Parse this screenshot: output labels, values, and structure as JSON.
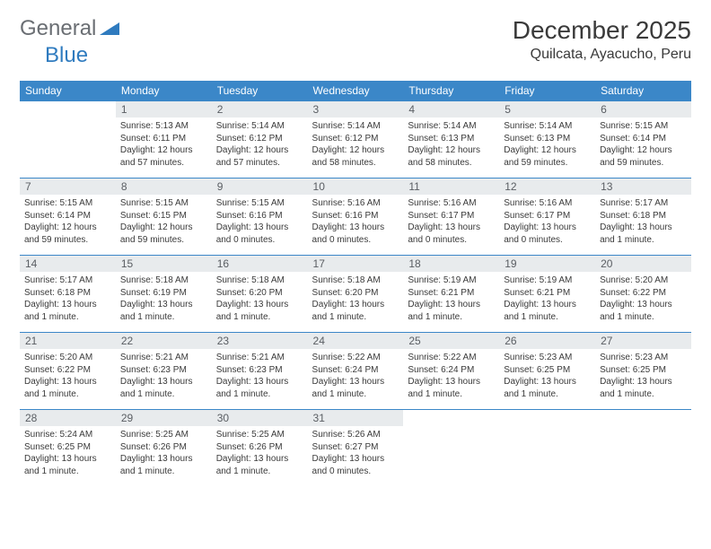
{
  "brand": {
    "part1": "General",
    "part2": "Blue"
  },
  "header": {
    "month_title": "December 2025",
    "location": "Quilcata, Ayacucho, Peru"
  },
  "colors": {
    "header_bg": "#3b87c8",
    "header_text": "#ffffff",
    "daynum_bg": "#e8ebed",
    "rule": "#3b87c8",
    "logo_accent": "#2f7bbf"
  },
  "weekdays": [
    "Sunday",
    "Monday",
    "Tuesday",
    "Wednesday",
    "Thursday",
    "Friday",
    "Saturday"
  ],
  "weeks": [
    [
      {
        "n": "",
        "sr": "",
        "ss": "",
        "dl": ""
      },
      {
        "n": "1",
        "sr": "Sunrise: 5:13 AM",
        "ss": "Sunset: 6:11 PM",
        "dl": "Daylight: 12 hours and 57 minutes."
      },
      {
        "n": "2",
        "sr": "Sunrise: 5:14 AM",
        "ss": "Sunset: 6:12 PM",
        "dl": "Daylight: 12 hours and 57 minutes."
      },
      {
        "n": "3",
        "sr": "Sunrise: 5:14 AM",
        "ss": "Sunset: 6:12 PM",
        "dl": "Daylight: 12 hours and 58 minutes."
      },
      {
        "n": "4",
        "sr": "Sunrise: 5:14 AM",
        "ss": "Sunset: 6:13 PM",
        "dl": "Daylight: 12 hours and 58 minutes."
      },
      {
        "n": "5",
        "sr": "Sunrise: 5:14 AM",
        "ss": "Sunset: 6:13 PM",
        "dl": "Daylight: 12 hours and 59 minutes."
      },
      {
        "n": "6",
        "sr": "Sunrise: 5:15 AM",
        "ss": "Sunset: 6:14 PM",
        "dl": "Daylight: 12 hours and 59 minutes."
      }
    ],
    [
      {
        "n": "7",
        "sr": "Sunrise: 5:15 AM",
        "ss": "Sunset: 6:14 PM",
        "dl": "Daylight: 12 hours and 59 minutes."
      },
      {
        "n": "8",
        "sr": "Sunrise: 5:15 AM",
        "ss": "Sunset: 6:15 PM",
        "dl": "Daylight: 12 hours and 59 minutes."
      },
      {
        "n": "9",
        "sr": "Sunrise: 5:15 AM",
        "ss": "Sunset: 6:16 PM",
        "dl": "Daylight: 13 hours and 0 minutes."
      },
      {
        "n": "10",
        "sr": "Sunrise: 5:16 AM",
        "ss": "Sunset: 6:16 PM",
        "dl": "Daylight: 13 hours and 0 minutes."
      },
      {
        "n": "11",
        "sr": "Sunrise: 5:16 AM",
        "ss": "Sunset: 6:17 PM",
        "dl": "Daylight: 13 hours and 0 minutes."
      },
      {
        "n": "12",
        "sr": "Sunrise: 5:16 AM",
        "ss": "Sunset: 6:17 PM",
        "dl": "Daylight: 13 hours and 0 minutes."
      },
      {
        "n": "13",
        "sr": "Sunrise: 5:17 AM",
        "ss": "Sunset: 6:18 PM",
        "dl": "Daylight: 13 hours and 1 minute."
      }
    ],
    [
      {
        "n": "14",
        "sr": "Sunrise: 5:17 AM",
        "ss": "Sunset: 6:18 PM",
        "dl": "Daylight: 13 hours and 1 minute."
      },
      {
        "n": "15",
        "sr": "Sunrise: 5:18 AM",
        "ss": "Sunset: 6:19 PM",
        "dl": "Daylight: 13 hours and 1 minute."
      },
      {
        "n": "16",
        "sr": "Sunrise: 5:18 AM",
        "ss": "Sunset: 6:20 PM",
        "dl": "Daylight: 13 hours and 1 minute."
      },
      {
        "n": "17",
        "sr": "Sunrise: 5:18 AM",
        "ss": "Sunset: 6:20 PM",
        "dl": "Daylight: 13 hours and 1 minute."
      },
      {
        "n": "18",
        "sr": "Sunrise: 5:19 AM",
        "ss": "Sunset: 6:21 PM",
        "dl": "Daylight: 13 hours and 1 minute."
      },
      {
        "n": "19",
        "sr": "Sunrise: 5:19 AM",
        "ss": "Sunset: 6:21 PM",
        "dl": "Daylight: 13 hours and 1 minute."
      },
      {
        "n": "20",
        "sr": "Sunrise: 5:20 AM",
        "ss": "Sunset: 6:22 PM",
        "dl": "Daylight: 13 hours and 1 minute."
      }
    ],
    [
      {
        "n": "21",
        "sr": "Sunrise: 5:20 AM",
        "ss": "Sunset: 6:22 PM",
        "dl": "Daylight: 13 hours and 1 minute."
      },
      {
        "n": "22",
        "sr": "Sunrise: 5:21 AM",
        "ss": "Sunset: 6:23 PM",
        "dl": "Daylight: 13 hours and 1 minute."
      },
      {
        "n": "23",
        "sr": "Sunrise: 5:21 AM",
        "ss": "Sunset: 6:23 PM",
        "dl": "Daylight: 13 hours and 1 minute."
      },
      {
        "n": "24",
        "sr": "Sunrise: 5:22 AM",
        "ss": "Sunset: 6:24 PM",
        "dl": "Daylight: 13 hours and 1 minute."
      },
      {
        "n": "25",
        "sr": "Sunrise: 5:22 AM",
        "ss": "Sunset: 6:24 PM",
        "dl": "Daylight: 13 hours and 1 minute."
      },
      {
        "n": "26",
        "sr": "Sunrise: 5:23 AM",
        "ss": "Sunset: 6:25 PM",
        "dl": "Daylight: 13 hours and 1 minute."
      },
      {
        "n": "27",
        "sr": "Sunrise: 5:23 AM",
        "ss": "Sunset: 6:25 PM",
        "dl": "Daylight: 13 hours and 1 minute."
      }
    ],
    [
      {
        "n": "28",
        "sr": "Sunrise: 5:24 AM",
        "ss": "Sunset: 6:25 PM",
        "dl": "Daylight: 13 hours and 1 minute."
      },
      {
        "n": "29",
        "sr": "Sunrise: 5:25 AM",
        "ss": "Sunset: 6:26 PM",
        "dl": "Daylight: 13 hours and 1 minute."
      },
      {
        "n": "30",
        "sr": "Sunrise: 5:25 AM",
        "ss": "Sunset: 6:26 PM",
        "dl": "Daylight: 13 hours and 1 minute."
      },
      {
        "n": "31",
        "sr": "Sunrise: 5:26 AM",
        "ss": "Sunset: 6:27 PM",
        "dl": "Daylight: 13 hours and 0 minutes."
      },
      {
        "n": "",
        "sr": "",
        "ss": "",
        "dl": ""
      },
      {
        "n": "",
        "sr": "",
        "ss": "",
        "dl": ""
      },
      {
        "n": "",
        "sr": "",
        "ss": "",
        "dl": ""
      }
    ]
  ]
}
